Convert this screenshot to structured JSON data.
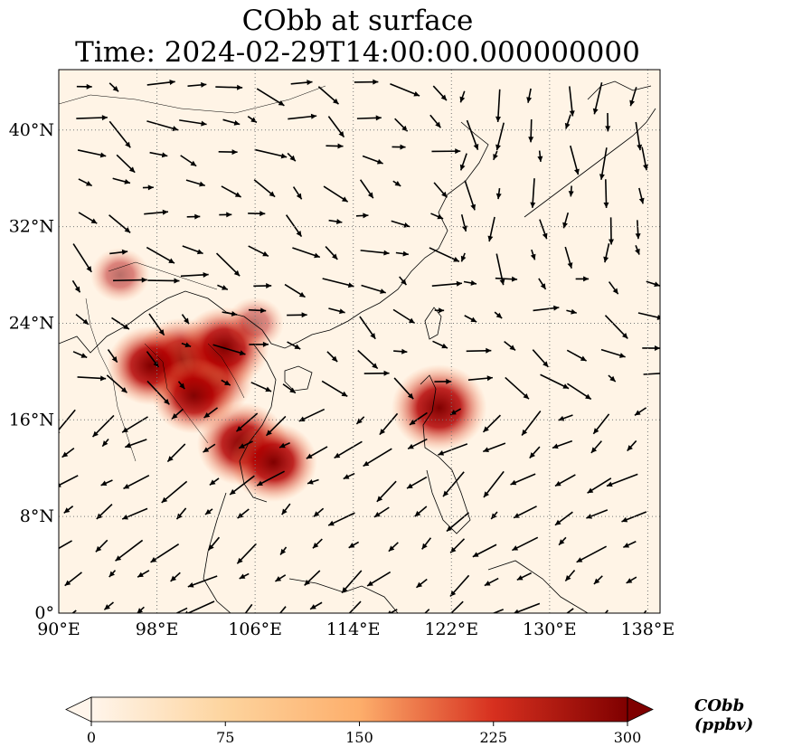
{
  "title": {
    "line1": "CObb at surface",
    "line2": "Time: 2024-02-29T14:00:00.000000000"
  },
  "map": {
    "lon_range": [
      90,
      139
    ],
    "lat_range": [
      0,
      45
    ],
    "x_ticks": [
      {
        "value": 90,
        "label": "90°E"
      },
      {
        "value": 98,
        "label": "98°E"
      },
      {
        "value": 106,
        "label": "106°E"
      },
      {
        "value": 114,
        "label": "114°E"
      },
      {
        "value": 122,
        "label": "122°E"
      },
      {
        "value": 130,
        "label": "130°E"
      },
      {
        "value": 138,
        "label": "138°E"
      }
    ],
    "y_ticks": [
      {
        "value": 0,
        "label": "0°"
      },
      {
        "value": 8,
        "label": "8°N"
      },
      {
        "value": 16,
        "label": "16°N"
      },
      {
        "value": 24,
        "label": "24°N"
      },
      {
        "value": 32,
        "label": "32°N"
      },
      {
        "value": 40,
        "label": "40°N"
      }
    ],
    "gridlines": true,
    "hotspots": [
      {
        "lon": 102,
        "lat": 19.5,
        "value": 300
      },
      {
        "lon": 100,
        "lat": 21,
        "value": 280
      },
      {
        "lon": 97.5,
        "lat": 20.5,
        "value": 260
      },
      {
        "lon": 103.5,
        "lat": 22,
        "value": 270
      },
      {
        "lon": 101,
        "lat": 18,
        "value": 240
      },
      {
        "lon": 105,
        "lat": 14,
        "value": 280
      },
      {
        "lon": 107.5,
        "lat": 12.5,
        "value": 260
      },
      {
        "lon": 121,
        "lat": 17,
        "value": 300
      },
      {
        "lon": 95,
        "lat": 28,
        "value": 120
      },
      {
        "lon": 106,
        "lat": 24,
        "value": 110
      }
    ]
  },
  "colorbar": {
    "min": 0,
    "max": 300,
    "ticks": [
      0,
      75,
      150,
      225,
      300
    ],
    "label": "CObb (ppbv)",
    "colors": [
      "#fff5eb",
      "#fdd49e",
      "#fc8d59",
      "#d7301f",
      "#7f0000"
    ]
  }
}
